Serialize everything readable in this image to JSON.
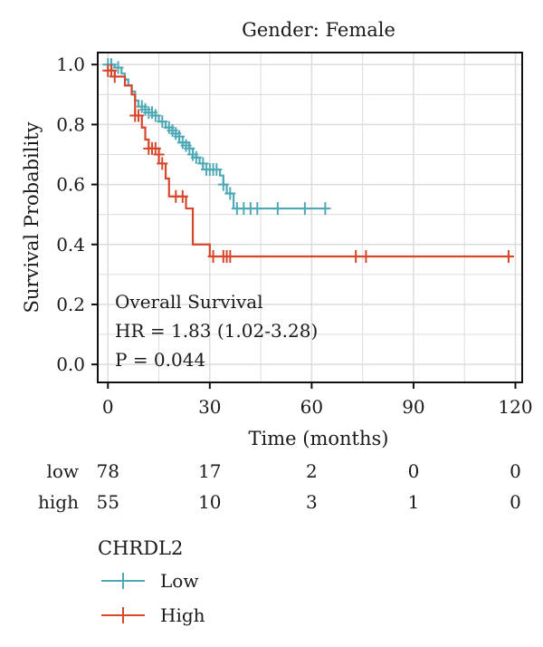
{
  "chart_data": {
    "type": "line",
    "subtype": "kaplan-meier",
    "title": "Gender: Female",
    "xlabel": "Time (months)",
    "ylabel": "Survival Probability",
    "xlim": [
      -3,
      122
    ],
    "ylim": [
      -0.06,
      1.04
    ],
    "x_ticks": [
      0,
      30,
      60,
      90,
      120
    ],
    "y_ticks": [
      0.0,
      0.2,
      0.4,
      0.6,
      0.8,
      1.0
    ],
    "x_tick_labels": [
      "0",
      "30",
      "60",
      "90",
      "120"
    ],
    "y_tick_labels": [
      "0.0",
      "0.2",
      "0.4",
      "0.6",
      "0.8",
      "1.0"
    ],
    "grid": true,
    "annotation": {
      "line1": "Overall Survival",
      "line2": "HR = 1.83 (1.02-3.28)",
      "line3": "P = 0.044"
    },
    "series": [
      {
        "name": "Low",
        "color": "#4fa8b5",
        "steps": [
          [
            0,
            1.0
          ],
          [
            2,
            0.99
          ],
          [
            4,
            0.97
          ],
          [
            5,
            0.95
          ],
          [
            6,
            0.93
          ],
          [
            7,
            0.91
          ],
          [
            8,
            0.88
          ],
          [
            9,
            0.86
          ],
          [
            11,
            0.84
          ],
          [
            13,
            0.83
          ],
          [
            15,
            0.81
          ],
          [
            17,
            0.79
          ],
          [
            19,
            0.77
          ],
          [
            21,
            0.74
          ],
          [
            24,
            0.72
          ],
          [
            25,
            0.69
          ],
          [
            27,
            0.67
          ],
          [
            28,
            0.65
          ],
          [
            33,
            0.63
          ],
          [
            34,
            0.6
          ],
          [
            35,
            0.57
          ],
          [
            37,
            0.52
          ],
          [
            65,
            0.52
          ]
        ],
        "censored": [
          [
            0,
            1.0
          ],
          [
            1,
            1.0
          ],
          [
            3,
            0.99
          ],
          [
            10,
            0.86
          ],
          [
            11,
            0.85
          ],
          [
            12,
            0.84
          ],
          [
            13,
            0.84
          ],
          [
            14,
            0.83
          ],
          [
            16,
            0.81
          ],
          [
            18,
            0.79
          ],
          [
            19,
            0.78
          ],
          [
            20,
            0.77
          ],
          [
            21,
            0.76
          ],
          [
            22,
            0.74
          ],
          [
            23,
            0.73
          ],
          [
            24,
            0.72
          ],
          [
            25,
            0.7
          ],
          [
            26,
            0.69
          ],
          [
            28,
            0.67
          ],
          [
            29,
            0.65
          ],
          [
            30,
            0.65
          ],
          [
            31,
            0.65
          ],
          [
            32,
            0.65
          ],
          [
            34,
            0.6
          ],
          [
            36,
            0.57
          ],
          [
            38,
            0.52
          ],
          [
            40,
            0.52
          ],
          [
            42,
            0.52
          ],
          [
            44,
            0.52
          ],
          [
            50,
            0.52
          ],
          [
            58,
            0.52
          ],
          [
            64,
            0.52
          ]
        ]
      },
      {
        "name": "High",
        "color": "#d6462b",
        "steps": [
          [
            0,
            0.98
          ],
          [
            2,
            0.96
          ],
          [
            5,
            0.93
          ],
          [
            7,
            0.9
          ],
          [
            8,
            0.83
          ],
          [
            10,
            0.79
          ],
          [
            11,
            0.75
          ],
          [
            12,
            0.72
          ],
          [
            15,
            0.67
          ],
          [
            17,
            0.62
          ],
          [
            18,
            0.56
          ],
          [
            23,
            0.52
          ],
          [
            25,
            0.4
          ],
          [
            30,
            0.36
          ],
          [
            119,
            0.36
          ]
        ],
        "censored": [
          [
            0,
            0.98
          ],
          [
            1,
            0.98
          ],
          [
            2,
            0.96
          ],
          [
            8,
            0.83
          ],
          [
            9,
            0.83
          ],
          [
            12,
            0.72
          ],
          [
            13,
            0.72
          ],
          [
            14,
            0.72
          ],
          [
            15,
            0.7
          ],
          [
            16,
            0.67
          ],
          [
            20,
            0.56
          ],
          [
            22,
            0.56
          ],
          [
            31,
            0.36
          ],
          [
            34,
            0.36
          ],
          [
            35,
            0.36
          ],
          [
            36,
            0.36
          ],
          [
            73,
            0.36
          ],
          [
            76,
            0.36
          ],
          [
            118,
            0.36
          ]
        ]
      }
    ],
    "risk_table": {
      "times": [
        0,
        30,
        60,
        90,
        120
      ],
      "rows": [
        {
          "label": "low",
          "counts": [
            "78",
            "17",
            "2",
            "0",
            "0"
          ]
        },
        {
          "label": "high",
          "counts": [
            "55",
            "10",
            "3",
            "1",
            "0"
          ]
        }
      ]
    },
    "legend": {
      "title": "CHRDL2",
      "position": "bottom-left",
      "items": [
        "Low",
        "High"
      ]
    }
  }
}
